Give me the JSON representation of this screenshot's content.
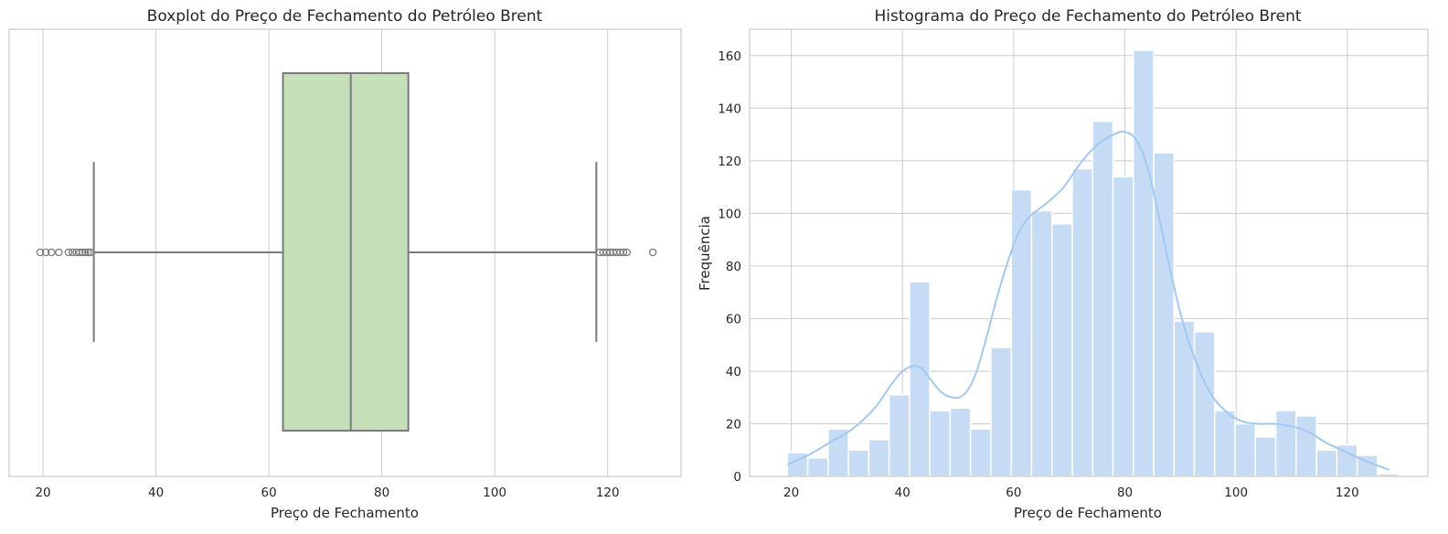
{
  "colors": {
    "box_fill": "#c5e0b8",
    "box_line": "#7a7a7a",
    "hist_fill": "#c6dcf5",
    "kde_line": "#a1c9f4",
    "grid": "#cccccc"
  },
  "chart_data": [
    {
      "type": "boxplot",
      "title": "Boxplot do Preço de Fechamento do Petróleo Brent",
      "xlabel": "Preço de Fechamento",
      "ylabel": "",
      "xlim": [
        14,
        133
      ],
      "xticks": [
        20,
        40,
        60,
        80,
        100,
        120
      ],
      "grid": true,
      "box": {
        "whisker_low": 29,
        "q1": 62.5,
        "median": 74.5,
        "q3": 84.7,
        "whisker_high": 118
      },
      "outliers": [
        19.5,
        20.5,
        21.5,
        22.8,
        24.5,
        25.2,
        25.9,
        26.5,
        27.0,
        27.5,
        28.0,
        28.4,
        118.6,
        119.2,
        119.8,
        120.4,
        121.0,
        121.6,
        122.2,
        122.8,
        123.4,
        128.0
      ]
    },
    {
      "type": "histogram",
      "title": "Histograma do Preço de Fechamento do Petróleo Brent",
      "xlabel": "Preço de Fechamento",
      "ylabel": "Frequência",
      "xlim": [
        12.5,
        134.5
      ],
      "ylim": [
        0,
        170
      ],
      "xticks": [
        20,
        40,
        60,
        80,
        100,
        120
      ],
      "yticks": [
        0,
        20,
        40,
        60,
        80,
        100,
        120,
        140,
        160
      ],
      "grid": true,
      "bin_edges": [
        19.3,
        22.96,
        26.62,
        30.28,
        33.94,
        37.6,
        41.26,
        44.92,
        48.58,
        52.24,
        55.9,
        59.56,
        63.22,
        66.88,
        70.54,
        74.2,
        77.86,
        81.52,
        85.18,
        88.84,
        92.5,
        96.16,
        99.82,
        103.48,
        107.14,
        110.8,
        114.46,
        118.12,
        121.78,
        125.44,
        129.1
      ],
      "counts": [
        9,
        7,
        18,
        10,
        14,
        31,
        74,
        25,
        26,
        18,
        49,
        109,
        101,
        96,
        117,
        135,
        114,
        162,
        123,
        59,
        55,
        25,
        20,
        15,
        25,
        23,
        10,
        12,
        8,
        1
      ],
      "kde": {
        "x": [
          19.3,
          23,
          27,
          31,
          35,
          38,
          40,
          42,
          43.5,
          45,
          47,
          49,
          51,
          53,
          55,
          57,
          59,
          61,
          63,
          66,
          69,
          72,
          75,
          78,
          80,
          82,
          84,
          86,
          88,
          90,
          92,
          95,
          98,
          101,
          104,
          107,
          110,
          113,
          116,
          119,
          122,
          125,
          127.5
        ],
        "y": [
          4.5,
          8,
          13,
          18,
          26,
          35,
          40,
          42,
          41,
          37,
          32,
          30,
          31,
          38,
          52,
          68,
          82,
          93,
          99,
          104,
          110,
          119,
          126,
          130,
          131,
          128,
          118,
          100,
          80,
          62,
          48,
          33,
          25,
          21,
          20,
          20,
          19,
          17,
          13,
          10,
          7,
          4.5,
          2.5
        ]
      }
    }
  ]
}
